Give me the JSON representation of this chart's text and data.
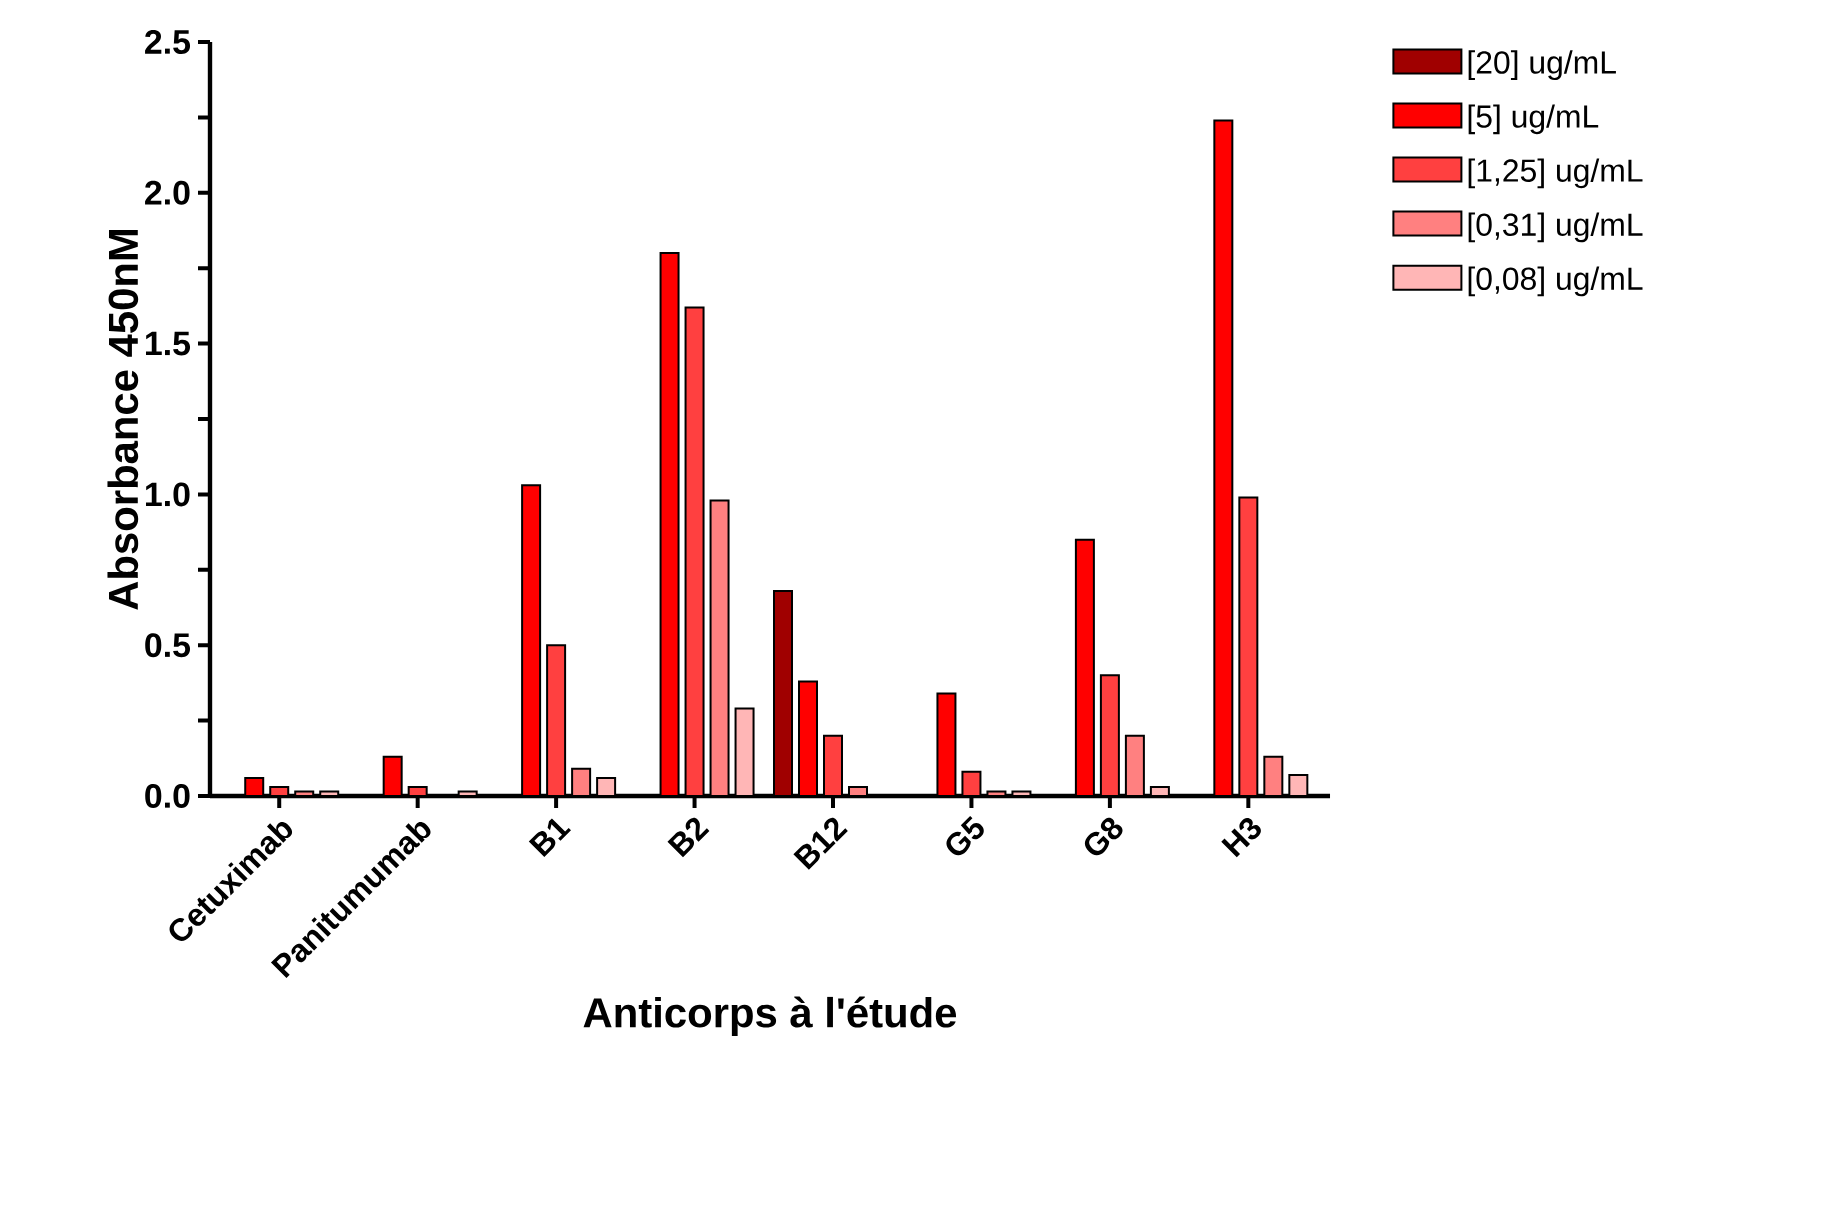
{
  "chart_data": {
    "type": "bar",
    "xlabel": "Anticorps à l'étude",
    "ylabel": "Absorbance 450nM",
    "categories": [
      "Cetuximab",
      "Panitumumab",
      "B1",
      "B2",
      "B12",
      "G5",
      "G8",
      "H3"
    ],
    "series": [
      {
        "name": "[20] ug/mL",
        "color": "#a00000",
        "values": [
          null,
          null,
          null,
          null,
          0.68,
          null,
          null,
          null
        ]
      },
      {
        "name": "[5] ug/mL",
        "color": "#ff0000",
        "values": [
          0.06,
          0.13,
          1.03,
          1.8,
          0.38,
          0.34,
          0.85,
          2.24
        ]
      },
      {
        "name": "[1,25] ug/mL",
        "color": "#ff4040",
        "values": [
          0.03,
          0.03,
          0.5,
          1.62,
          0.2,
          0.08,
          0.4,
          0.99
        ]
      },
      {
        "name": "[0,31] ug/mL",
        "color": "#ff8080",
        "values": [
          0.015,
          null,
          0.09,
          0.98,
          0.03,
          0.015,
          0.2,
          0.13
        ]
      },
      {
        "name": "[0,08] ug/mL",
        "color": "#ffb6b6",
        "values": [
          0.015,
          0.015,
          0.06,
          0.29,
          null,
          0.015,
          0.03,
          0.07
        ]
      }
    ],
    "ylim": [
      0,
      2.5
    ],
    "yticks": [
      {
        "value": 0,
        "label": "0.0"
      },
      {
        "value": 0.25,
        "label": null
      },
      {
        "value": 0.5,
        "label": "0.5"
      },
      {
        "value": 0.75,
        "label": null
      },
      {
        "value": 1,
        "label": "1.0"
      },
      {
        "value": 1.25,
        "label": null
      },
      {
        "value": 1.5,
        "label": "1.5"
      },
      {
        "value": 1.75,
        "label": null
      },
      {
        "value": 2,
        "label": "2.0"
      },
      {
        "value": 2.25,
        "label": null
      },
      {
        "value": 2.5,
        "label": "2.5"
      }
    ],
    "legend": "right"
  }
}
